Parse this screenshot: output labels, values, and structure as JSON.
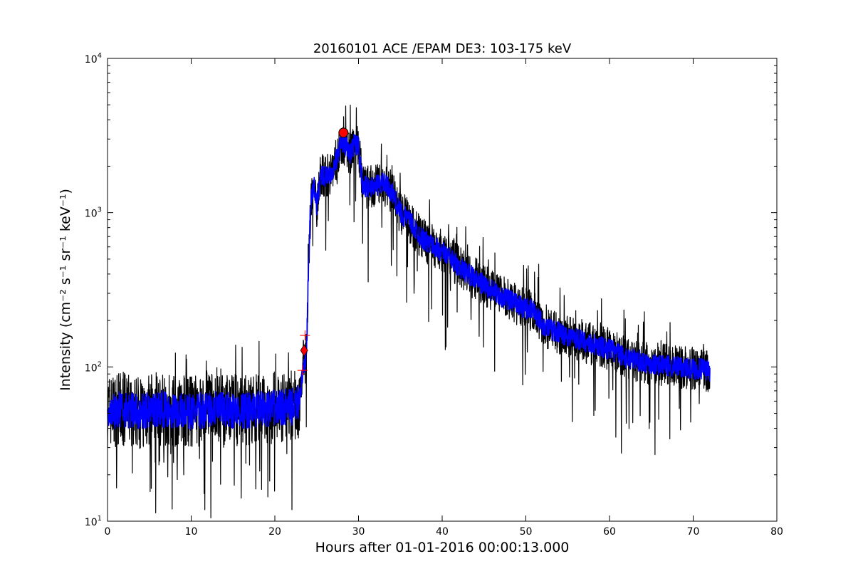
{
  "chart_data": {
    "type": "line",
    "title": "20160101 ACE /EPAM DE3: 103-175 keV",
    "xlabel": "Hours after 01-01-2016 00:00:13.000",
    "ylabel": "Intensity (cm⁻² s⁻¹ sr⁻¹ keV⁻¹)",
    "xlim": [
      0,
      80
    ],
    "ylim": [
      10,
      10000
    ],
    "yscale": "log",
    "grid": false,
    "x_ticks": [
      {
        "value": 0,
        "label": "0"
      },
      {
        "value": 10,
        "label": "10"
      },
      {
        "value": 20,
        "label": "20"
      },
      {
        "value": 30,
        "label": "30"
      },
      {
        "value": 40,
        "label": "40"
      },
      {
        "value": 50,
        "label": "50"
      },
      {
        "value": 60,
        "label": "60"
      },
      {
        "value": 70,
        "label": "70"
      },
      {
        "value": 80,
        "label": "80"
      }
    ],
    "y_ticks": [
      {
        "value": 10,
        "base": "10",
        "exp": "1"
      },
      {
        "value": 100,
        "base": "10",
        "exp": "2"
      },
      {
        "value": 1000,
        "base": "10",
        "exp": "3"
      },
      {
        "value": 10000,
        "base": "10",
        "exp": "4"
      }
    ],
    "series": [
      {
        "color": "#000000",
        "style": "line",
        "x": [
          0,
          2,
          4,
          6,
          8,
          10,
          12,
          14,
          16,
          18,
          20,
          22,
          22.8,
          23.2,
          23.5,
          23.8,
          24.0,
          24.3,
          24.7,
          25.0,
          25.5,
          26.0,
          27.0,
          28.0,
          28.5,
          29.0,
          29.5,
          30.0,
          30.5,
          31.0,
          32.0,
          33.0,
          34.0,
          35.0,
          36.0,
          37.0,
          38.0,
          40.0,
          42.0,
          44.0,
          46.0,
          48.0,
          50.0,
          51.0,
          52.0,
          53.0,
          55.0,
          58.0,
          60.0,
          62.0,
          65.0,
          68.0,
          70.0,
          72.0
        ],
        "y": [
          52,
          53,
          51,
          54,
          52,
          51,
          53,
          52,
          52,
          53,
          54,
          55,
          58,
          80,
          95,
          130,
          400,
          1200,
          1500,
          1100,
          1800,
          1700,
          1900,
          2900,
          2700,
          2400,
          2800,
          2700,
          1500,
          1450,
          1500,
          1550,
          1350,
          1000,
          900,
          750,
          650,
          560,
          450,
          370,
          310,
          270,
          240,
          230,
          190,
          175,
          160,
          140,
          130,
          115,
          105,
          100,
          98,
          95
        ]
      },
      {
        "color": "#0000ff",
        "style": "line",
        "x": [
          0,
          2,
          4,
          6,
          8,
          10,
          12,
          14,
          16,
          18,
          20,
          22,
          22.8,
          23.2,
          23.5,
          23.8,
          24.0,
          24.3,
          24.7,
          25.0,
          25.5,
          26.0,
          27.0,
          28.0,
          28.5,
          29.0,
          29.5,
          30.0,
          30.5,
          31.0,
          32.0,
          33.0,
          34.0,
          35.0,
          36.0,
          37.0,
          38.0,
          40.0,
          42.0,
          44.0,
          46.0,
          48.0,
          50.0,
          51.0,
          52.0,
          53.0,
          55.0,
          58.0,
          60.0,
          62.0,
          65.0,
          68.0,
          70.0,
          72.0
        ],
        "y": [
          52,
          53,
          51,
          54,
          52,
          51,
          53,
          52,
          52,
          53,
          54,
          55,
          58,
          80,
          95,
          130,
          400,
          1200,
          1500,
          1100,
          1800,
          1700,
          1900,
          2900,
          2700,
          2400,
          2800,
          2700,
          1500,
          1450,
          1500,
          1550,
          1350,
          1000,
          900,
          750,
          650,
          560,
          450,
          370,
          310,
          270,
          240,
          230,
          190,
          175,
          160,
          140,
          130,
          115,
          105,
          100,
          98,
          95
        ]
      }
    ],
    "markers": [
      {
        "shape": "circle",
        "color": "#ff0000",
        "x": 28.2,
        "y": 3300
      },
      {
        "shape": "diamond",
        "color": "#ff0000",
        "x": 23.5,
        "y": 128
      },
      {
        "shape": "plus",
        "color": "#ff0000",
        "x": 23.6,
        "y": 160
      },
      {
        "shape": "plus",
        "color": "#ff0000",
        "x": 23.3,
        "y": 95
      }
    ]
  }
}
